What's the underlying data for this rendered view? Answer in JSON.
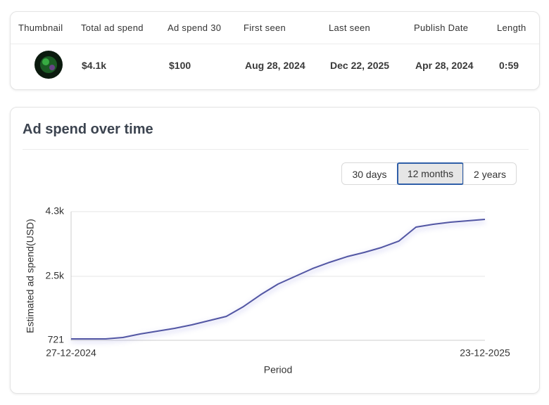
{
  "table": {
    "headers": [
      "Thumbnail",
      "Total ad spend",
      "Ad spend 30",
      "First seen",
      "Last seen",
      "Publish Date",
      "Length"
    ],
    "rows": [
      [
        "$4.1k",
        "$100",
        "Aug 28, 2024",
        "Dec 22, 2025",
        "Apr 28, 2024",
        "0:59"
      ]
    ]
  },
  "card": {
    "title": "Ad spend over time",
    "ranges": [
      "30 days",
      "12 months",
      "2 years"
    ]
  },
  "chart_data": {
    "type": "line",
    "x_label": "Period",
    "y_label": "Estimated ad spend(USD)",
    "categories": [
      "27-12-2024",
      null,
      null,
      null,
      null,
      null,
      null,
      null,
      null,
      null,
      null,
      null,
      null,
      null,
      null,
      null,
      null,
      null,
      null,
      null,
      null,
      null,
      null,
      null,
      "23-12-2025"
    ],
    "values": [
      760,
      760,
      760,
      800,
      897,
      975,
      1053,
      1151,
      1269,
      1386,
      1660,
      1992,
      2286,
      2501,
      2716,
      2892,
      3048,
      3166,
      3303,
      3479,
      3870,
      3948,
      4007,
      4046,
      4085
    ],
    "color": "#5256a3",
    "ylim": [
      721,
      4300
    ],
    "yticks": [
      721,
      {
        "value": 2500,
        "label": "2.5k"
      },
      {
        "value": 4300,
        "label": "4.3k"
      }
    ],
    "grid": true
  }
}
